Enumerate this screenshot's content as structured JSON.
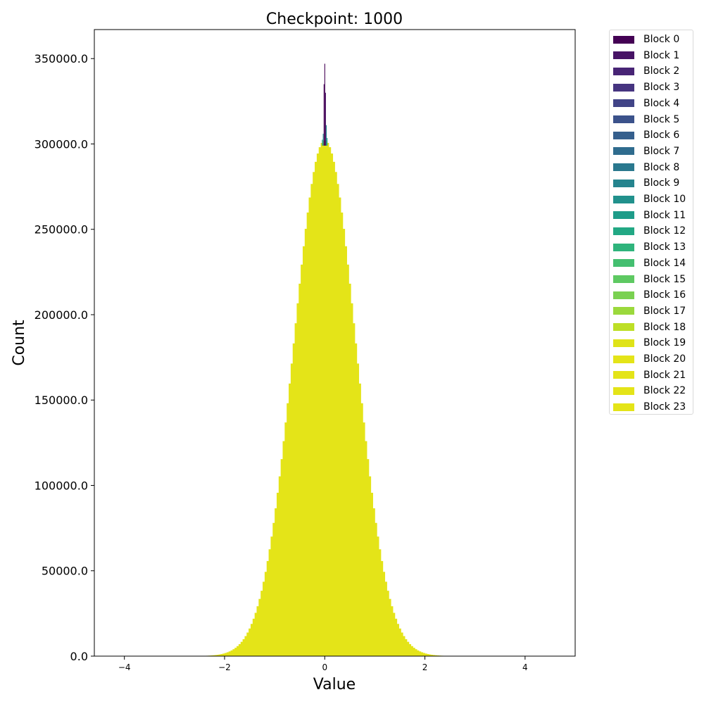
{
  "chart_data": {
    "type": "bar",
    "subtype": "stacked-histogram",
    "title": "Checkpoint: 1000",
    "xlabel": "Value",
    "ylabel": "Count",
    "xlim": [
      -4.6,
      5.0
    ],
    "ylim": [
      0,
      367000
    ],
    "xticks": [
      -4,
      -2,
      0,
      2,
      4
    ],
    "xtick_labels": [
      "−4",
      "−2",
      "0",
      "2",
      "4"
    ],
    "yticks": [
      0,
      50000,
      100000,
      150000,
      200000,
      250000,
      300000,
      350000
    ],
    "ytick_labels": [
      "0.0",
      "50000.0",
      "100000.0",
      "150000.0",
      "200000.0",
      "250000.0",
      "300000.0",
      "350000.0"
    ],
    "grid": false,
    "legend_position": "outside-top-right",
    "legend": [
      "Block 0",
      "Block 1",
      "Block 2",
      "Block 3",
      "Block 4",
      "Block 5",
      "Block 6",
      "Block 7",
      "Block 8",
      "Block 9",
      "Block 10",
      "Block 11",
      "Block 12",
      "Block 13",
      "Block 14",
      "Block 15",
      "Block 16",
      "Block 17",
      "Block 18",
      "Block 19",
      "Block 20",
      "Block 21",
      "Block 22",
      "Block 23"
    ],
    "colors": [
      "#440154",
      "#471365",
      "#482475",
      "#463480",
      "#414487",
      "#3b528b",
      "#355f8d",
      "#2f6c8e",
      "#2a788e",
      "#25848e",
      "#21918c",
      "#1e9c89",
      "#22a884",
      "#2fb47c",
      "#44bf70",
      "#5ec962",
      "#7ad151",
      "#9bd93c",
      "#bddf26",
      "#dfe318",
      "#e4e418",
      "#e4e418",
      "#e4e418",
      "#e4e418"
    ],
    "distribution": {
      "dominant_series": "Block 23",
      "shape": "normal",
      "mean": 0.0,
      "std": 0.62,
      "peak_count": 302000,
      "bin_width": 0.04,
      "x_range": [
        -3.0,
        3.0
      ]
    },
    "spike": {
      "x": 0.0,
      "top_count": 347000,
      "top_series": "Block 0",
      "mid_series_top": 311000
    }
  }
}
